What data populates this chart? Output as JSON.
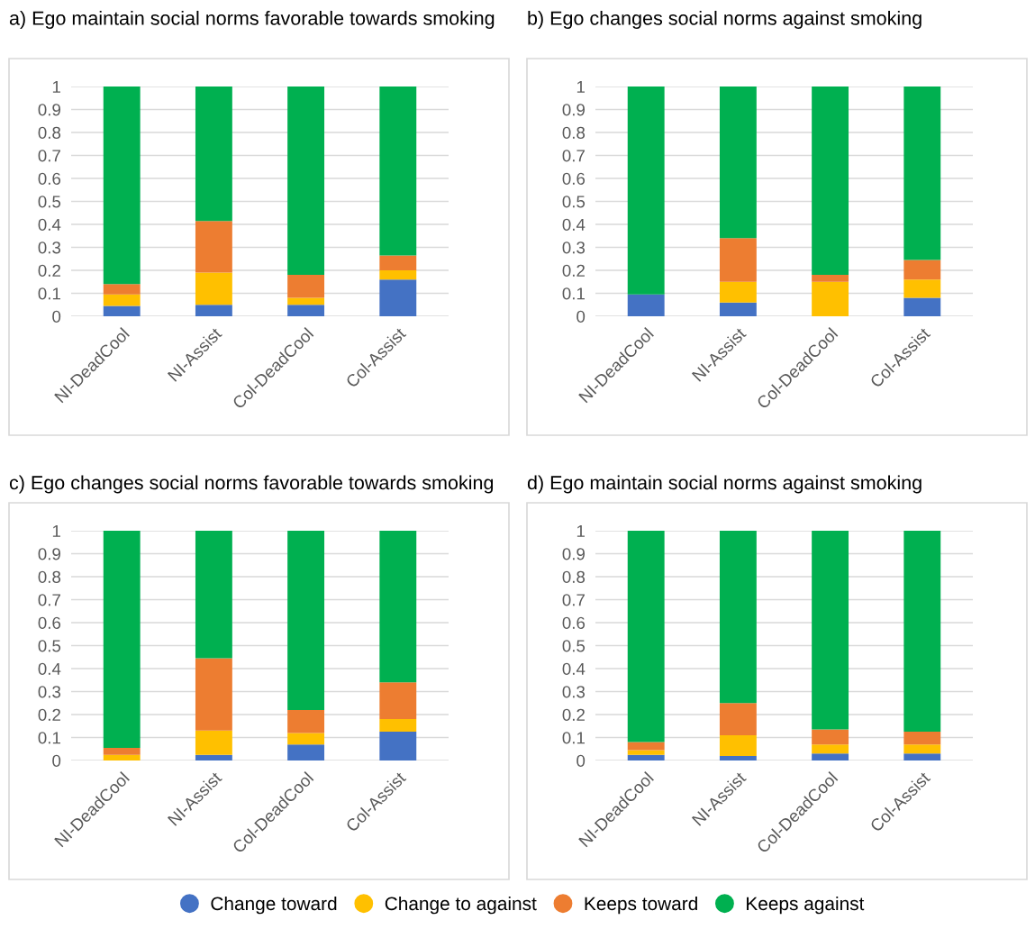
{
  "chart_data": [
    {
      "type": "bar",
      "stacked": true,
      "title": "a) Ego maintain social norms favorable towards smoking",
      "categories": [
        "NI-DeadCool",
        "NI-Assist",
        "Col-DeadCool",
        "Col-Assist"
      ],
      "ylim": [
        0,
        1
      ],
      "yticks": [
        0,
        0.1,
        0.2,
        0.3,
        0.4,
        0.5,
        0.6,
        0.7,
        0.8,
        0.9,
        1
      ],
      "grid": "y",
      "legend": "bottom",
      "series": [
        {
          "name": "Change toward",
          "color": "#4472c4",
          "values": [
            0.045,
            0.05,
            0.05,
            0.16
          ]
        },
        {
          "name": "Change to against",
          "color": "#ffc000",
          "values": [
            0.05,
            0.14,
            0.03,
            0.04
          ]
        },
        {
          "name": "Keeps toward",
          "color": "#ed7d31",
          "values": [
            0.045,
            0.225,
            0.1,
            0.065
          ]
        },
        {
          "name": "Keeps against",
          "color": "#00b050",
          "values": [
            0.86,
            0.585,
            0.82,
            0.735
          ]
        }
      ]
    },
    {
      "type": "bar",
      "stacked": true,
      "title": "b) Ego changes social norms against smoking",
      "categories": [
        "NI-DeadCool",
        "NI-Assist",
        "Col-DeadCool",
        "Col-Assist"
      ],
      "ylim": [
        0,
        1
      ],
      "yticks": [
        0,
        0.1,
        0.2,
        0.3,
        0.4,
        0.5,
        0.6,
        0.7,
        0.8,
        0.9,
        1
      ],
      "grid": "y",
      "series": [
        {
          "color": "#4472c4",
          "values": [
            0.095,
            0.06,
            0,
            0.08
          ]
        },
        {
          "color": "#ffc000",
          "values": [
            0,
            0.09,
            0.15,
            0.08
          ]
        },
        {
          "color": "#ed7d31",
          "values": [
            0,
            0.19,
            0.03,
            0.085
          ]
        },
        {
          "color": "#00b050",
          "values": [
            0.905,
            0.66,
            0.82,
            0.755
          ]
        }
      ]
    },
    {
      "type": "bar",
      "stacked": true,
      "title": "c) Ego changes social norms favorable towards smoking",
      "categories": [
        "NI-DeadCool",
        "NI-Assist",
        "Col-DeadCool",
        "Col-Assist"
      ],
      "ylim": [
        0,
        1
      ],
      "yticks": [
        0,
        0.1,
        0.2,
        0.3,
        0.4,
        0.5,
        0.6,
        0.7,
        0.8,
        0.9,
        1
      ],
      "grid": "y",
      "series": [
        {
          "color": "#4472c4",
          "values": [
            0,
            0.025,
            0.07,
            0.125
          ]
        },
        {
          "color": "#ffc000",
          "values": [
            0.025,
            0.105,
            0.05,
            0.055
          ]
        },
        {
          "color": "#ed7d31",
          "values": [
            0.03,
            0.315,
            0.1,
            0.16
          ]
        },
        {
          "color": "#00b050",
          "values": [
            0.945,
            0.555,
            0.78,
            0.66
          ]
        }
      ]
    },
    {
      "type": "bar",
      "stacked": true,
      "title": "d) Ego maintain social norms against smoking",
      "categories": [
        "NI-DeadCool",
        "NI-Assist",
        "Col-DeadCool",
        "Col-Assist"
      ],
      "ylim": [
        0,
        1
      ],
      "yticks": [
        0,
        0.1,
        0.2,
        0.3,
        0.4,
        0.5,
        0.6,
        0.7,
        0.8,
        0.9,
        1
      ],
      "grid": "y",
      "series": [
        {
          "color": "#4472c4",
          "values": [
            0.025,
            0.02,
            0.03,
            0.03
          ]
        },
        {
          "color": "#ffc000",
          "values": [
            0.02,
            0.09,
            0.04,
            0.04
          ]
        },
        {
          "color": "#ed7d31",
          "values": [
            0.035,
            0.14,
            0.065,
            0.055
          ]
        },
        {
          "color": "#00b050",
          "values": [
            0.92,
            0.75,
            0.865,
            0.875
          ]
        }
      ]
    }
  ]
}
